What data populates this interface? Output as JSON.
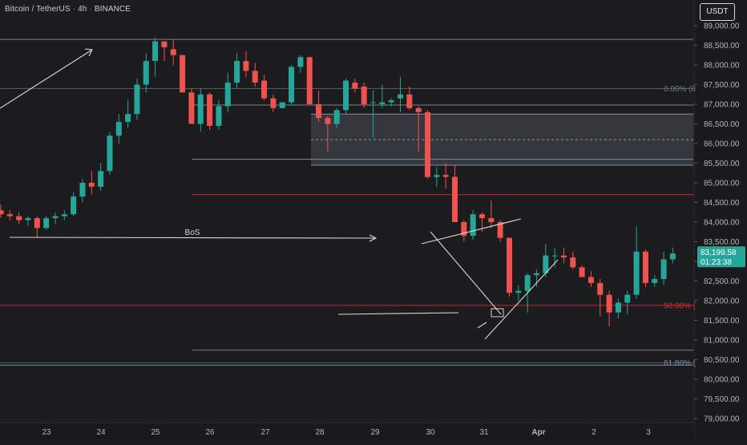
{
  "header": {
    "symbol": "Bitcoin / TetherUS",
    "interval": "4h",
    "exchange": "BINANCE",
    "currency_button": "USDT"
  },
  "price_tag": {
    "price": "83,199.58",
    "countdown": "01:23:38",
    "value": 83199.58
  },
  "colors": {
    "background": "#1c1c1e",
    "up": "#26a69a",
    "down": "#ef5350",
    "red_level": "#c4262e",
    "fib_label": "#6b7a86",
    "fib_50_label": "#d23036",
    "fib_618_label": "#7b8fa3",
    "zone_fill": "#3a3c42",
    "zone_line": "#6d93b3",
    "drawing": "#d7d8dc"
  },
  "chart_data": {
    "type": "candlestick",
    "title": "Bitcoin / TetherUS · 4h · BINANCE",
    "xlabel": "",
    "ylabel": "",
    "ylim": [
      78870,
      89350
    ],
    "y_ticks": [
      79000,
      79500,
      80000,
      80500,
      81000,
      81500,
      82000,
      82500,
      83000,
      83500,
      84000,
      84500,
      85000,
      85500,
      86000,
      86500,
      87000,
      87500,
      88000,
      88500,
      89000
    ],
    "y_tick_labels": [
      "79,000.00",
      "79,500.00",
      "80,000.00",
      "80,500.00",
      "81,000.00",
      "81,500.00",
      "82,000.00",
      "82,500.00",
      "83,000.00",
      "83,500.00",
      "84,000.00",
      "84,500.00",
      "85,000.00",
      "85,500.00",
      "86,000.00",
      "86,500.00",
      "87,000.00",
      "87,500.00",
      "88,000.00",
      "88,500.00",
      "89,000.00"
    ],
    "x_ticks": [
      "23",
      "24",
      "25",
      "26",
      "27",
      "28",
      "29",
      "30",
      "31",
      "Apr",
      "2",
      "3"
    ],
    "candles_ohlc": [
      [
        84300,
        84450,
        84100,
        84200
      ],
      [
        84200,
        84300,
        84050,
        84150
      ],
      [
        84150,
        84250,
        83950,
        84050
      ],
      [
        84050,
        84150,
        83900,
        84100
      ],
      [
        84100,
        84150,
        83600,
        83850
      ],
      [
        83850,
        84150,
        83800,
        84100
      ],
      [
        84100,
        84250,
        83950,
        84150
      ],
      [
        84150,
        84300,
        84050,
        84200
      ],
      [
        84200,
        84750,
        84150,
        84650
      ],
      [
        84650,
        85100,
        84500,
        85000
      ],
      [
        85000,
        85300,
        84700,
        84900
      ],
      [
        84900,
        85500,
        84800,
        85300
      ],
      [
        85300,
        86300,
        85200,
        86200
      ],
      [
        86200,
        86750,
        86000,
        86550
      ],
      [
        86550,
        87100,
        86400,
        86750
      ],
      [
        86750,
        87650,
        86600,
        87500
      ],
      [
        87500,
        88300,
        87300,
        88100
      ],
      [
        88100,
        88700,
        87700,
        88600
      ],
      [
        88600,
        88550,
        88100,
        88450
      ],
      [
        88400,
        88650,
        88000,
        88250
      ],
      [
        88250,
        88250,
        87300,
        87300
      ],
      [
        87300,
        87400,
        86500,
        86500
      ],
      [
        86500,
        87400,
        86300,
        87250
      ],
      [
        87250,
        87300,
        86350,
        86450
      ],
      [
        86450,
        87100,
        86350,
        86950
      ],
      [
        86950,
        87800,
        86800,
        87550
      ],
      [
        87550,
        88300,
        87400,
        88100
      ],
      [
        88100,
        88350,
        87700,
        87850
      ],
      [
        87850,
        88050,
        87450,
        87550
      ],
      [
        87600,
        87750,
        87100,
        87150
      ],
      [
        87150,
        87250,
        86800,
        86900
      ],
      [
        86900,
        87050,
        86900,
        87050
      ],
      [
        87050,
        88000,
        87000,
        87950
      ],
      [
        87950,
        88250,
        87800,
        88200
      ],
      [
        88200,
        88200,
        87000,
        87000
      ],
      [
        87000,
        87350,
        86550,
        86650
      ],
      [
        86650,
        86700,
        85800,
        86500
      ],
      [
        86500,
        86900,
        86400,
        86850
      ],
      [
        86850,
        87650,
        86750,
        87600
      ],
      [
        87550,
        87650,
        87300,
        87400
      ],
      [
        87450,
        87550,
        86900,
        87000
      ],
      [
        87050,
        87350,
        86150,
        87050
      ],
      [
        87000,
        87500,
        86900,
        87050
      ],
      [
        87050,
        87150,
        86950,
        87100
      ],
      [
        87150,
        87700,
        86800,
        87250
      ],
      [
        87250,
        87450,
        86850,
        86900
      ],
      [
        86900,
        86950,
        85800,
        86800
      ],
      [
        86800,
        86850,
        85100,
        85150
      ],
      [
        85150,
        85400,
        84900,
        85200
      ],
      [
        85200,
        85500,
        84850,
        85150
      ],
      [
        85150,
        85450,
        84000,
        84000
      ],
      [
        84000,
        84050,
        83500,
        83650
      ],
      [
        83650,
        84300,
        83550,
        84200
      ],
      [
        84200,
        84250,
        83750,
        84100
      ],
      [
        84100,
        84550,
        83850,
        84000
      ],
      [
        84000,
        84050,
        83500,
        83600
      ],
      [
        83600,
        83600,
        82100,
        82200
      ],
      [
        82200,
        82400,
        82000,
        82250
      ],
      [
        82250,
        82700,
        81700,
        82650
      ],
      [
        82650,
        82800,
        82350,
        82700
      ],
      [
        82700,
        83450,
        82600,
        83150
      ],
      [
        83150,
        83350,
        82850,
        83150
      ],
      [
        83150,
        83350,
        82950,
        83100
      ],
      [
        83100,
        83250,
        82800,
        82850
      ],
      [
        82850,
        82900,
        82600,
        82600
      ],
      [
        82600,
        82750,
        82350,
        82450
      ],
      [
        82450,
        82550,
        81600,
        82150
      ],
      [
        82150,
        82250,
        81350,
        81700
      ],
      [
        81700,
        82050,
        81550,
        81950
      ],
      [
        81950,
        82250,
        81650,
        82150
      ],
      [
        82150,
        83900,
        82050,
        83250
      ],
      [
        83250,
        83300,
        82350,
        82450
      ],
      [
        82450,
        82650,
        82350,
        82550
      ],
      [
        82550,
        83250,
        82400,
        83050
      ],
      [
        83050,
        83350,
        82950,
        83200
      ]
    ],
    "levels": [
      {
        "price": 88650,
        "kind": "line"
      },
      {
        "price": 87400,
        "kind": "fib",
        "label": "0.00% (8"
      },
      {
        "price": 86980,
        "kind": "line"
      },
      {
        "price": 86100,
        "kind": "dashed"
      },
      {
        "price": 85600,
        "kind": "line"
      },
      {
        "price": 84700,
        "kind": "red"
      },
      {
        "price": 81880,
        "kind": "red",
        "label": "50.00% ("
      },
      {
        "price": 80740,
        "kind": "line"
      },
      {
        "price": 80420,
        "kind": "fib",
        "label": "61.80% ("
      }
    ],
    "zone": {
      "top": 86750,
      "bottom": 85450
    },
    "annotations": [
      {
        "text": "BoS"
      }
    ]
  }
}
